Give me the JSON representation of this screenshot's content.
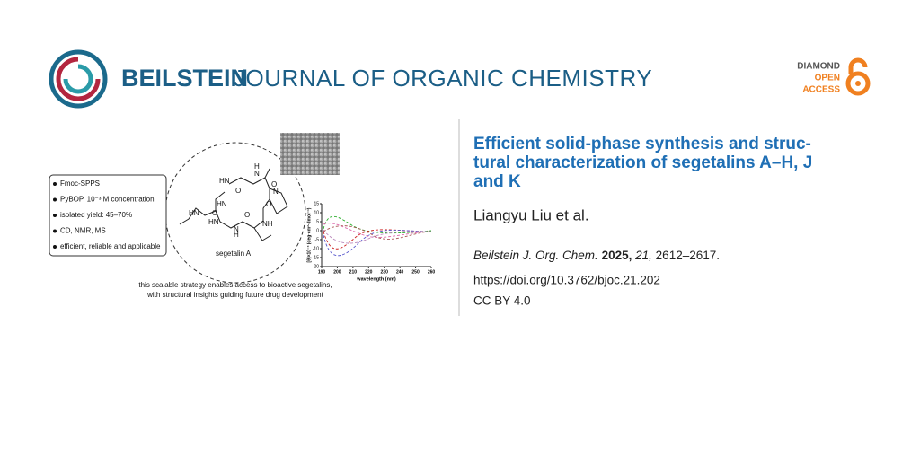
{
  "header": {
    "brand": "BEILSTEIN",
    "journal": "JOURNAL OF ORGANIC CHEMISTRY",
    "access": [
      "DIAMOND",
      "OPEN",
      "ACCESS"
    ]
  },
  "article": {
    "title_lines": [
      "Efficient solid-phase synthesis and struc-",
      "tural characterization of segetalins A–H, J",
      "and K"
    ],
    "authors": "Liangyu Liu et al.",
    "citation": {
      "journal": "Beilstein J. Org. Chem.",
      "year": "2025,",
      "volume": "21,",
      "pages": "2612–2617."
    },
    "doi": "https://doi.org/10.3762/bjoc.21.202",
    "license": "CC BY 4.0"
  },
  "graphic": {
    "bullets": [
      "Fmoc-SPPS",
      "PyBOP, 10⁻³ M concentration",
      "isolated yield: 45–70%",
      "CD, NMR, MS",
      "efficient, reliable and applicable"
    ],
    "structure_labels": [
      "HN",
      "H",
      "N",
      "O",
      "O",
      "HN",
      "N",
      "O",
      "HN",
      "O",
      "O",
      "NH",
      "N",
      "H",
      "HN"
    ],
    "compound": "segetalin A",
    "cd_plot": {
      "ylabel": "[θ]×10⁻³ (deg·cm²·dmol⁻¹)",
      "xlabel": "wavelength (nm)",
      "yticks": [
        15,
        10,
        5,
        0,
        -5,
        -10,
        -15,
        -20
      ],
      "xticks": [
        190,
        200,
        210,
        220,
        230,
        240,
        250,
        260
      ],
      "xlim": [
        190,
        260
      ],
      "ylim": [
        -20,
        15
      ]
    },
    "caption": [
      "this scalable strategy enables access to bioactive segetalins,",
      "with structural insights guiding future drug development"
    ]
  }
}
